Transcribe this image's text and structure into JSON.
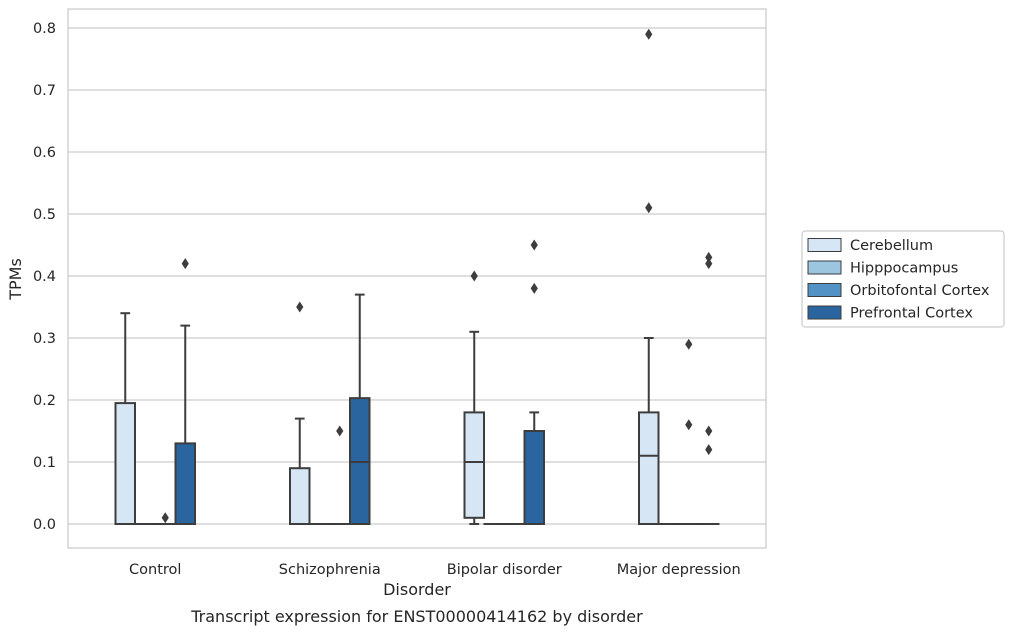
{
  "chart_data": {
    "type": "boxplot",
    "xlabel": "Disorder",
    "ylabel": "TPMs",
    "caption": "Transcript expression for ENST00000414162 by disorder",
    "ylim": [
      -0.04,
      0.83
    ],
    "yticks": [
      "0.0",
      "0.1",
      "0.2",
      "0.3",
      "0.4",
      "0.5",
      "0.6",
      "0.7",
      "0.8"
    ],
    "grid": "horizontal",
    "legend_position": "outside-right",
    "categories": [
      "Control",
      "Schizophrenia",
      "Bipolar disorder",
      "Major depression"
    ],
    "series": [
      {
        "name": "Cerebellum",
        "color": "#d6e6f4",
        "boxes": [
          {
            "min": 0,
            "q1": 0,
            "median": 0,
            "q3": 0.195,
            "max": 0.34,
            "outliers": []
          },
          {
            "min": 0,
            "q1": 0,
            "median": 0,
            "q3": 0.09,
            "max": 0.17,
            "outliers": [
              0.35
            ]
          },
          {
            "min": 0,
            "q1": 0.01,
            "median": 0.1,
            "q3": 0.18,
            "max": 0.31,
            "outliers": [
              0.4
            ]
          },
          {
            "min": 0,
            "q1": 0,
            "median": 0.11,
            "q3": 0.18,
            "max": 0.3,
            "outliers": [
              0.79,
              0.51
            ]
          }
        ]
      },
      {
        "name": "Hipppocampus",
        "color": "#9cc5e0",
        "boxes": [
          {
            "min": 0,
            "q1": 0,
            "median": 0,
            "q3": 0,
            "max": 0,
            "outliers": []
          },
          {
            "min": 0,
            "q1": 0,
            "median": 0,
            "q3": 0,
            "max": 0,
            "outliers": []
          },
          {
            "min": 0,
            "q1": 0,
            "median": 0,
            "q3": 0,
            "max": 0,
            "outliers": []
          },
          {
            "min": 0,
            "q1": 0,
            "median": 0,
            "q3": 0,
            "max": 0,
            "outliers": []
          }
        ]
      },
      {
        "name": "Orbitofontal Cortex",
        "color": "#5292c4",
        "boxes": [
          {
            "min": 0,
            "q1": 0,
            "median": 0,
            "q3": 0,
            "max": 0,
            "outliers": [
              0.01
            ]
          },
          {
            "min": 0,
            "q1": 0,
            "median": 0,
            "q3": 0,
            "max": 0,
            "outliers": [
              0.15
            ]
          },
          {
            "min": 0,
            "q1": 0,
            "median": 0,
            "q3": 0,
            "max": 0,
            "outliers": []
          },
          {
            "min": 0,
            "q1": 0,
            "median": 0,
            "q3": 0,
            "max": 0,
            "outliers": [
              0.29,
              0.16
            ]
          }
        ]
      },
      {
        "name": "Prefrontal Cortex",
        "color": "#2a65a0",
        "boxes": [
          {
            "min": 0,
            "q1": 0,
            "median": 0,
            "q3": 0.13,
            "max": 0.32,
            "outliers": [
              0.42
            ]
          },
          {
            "min": 0,
            "q1": 0,
            "median": 0.1,
            "q3": 0.203,
            "max": 0.37,
            "outliers": []
          },
          {
            "min": 0,
            "q1": 0,
            "median": 0,
            "q3": 0.15,
            "max": 0.18,
            "outliers": [
              0.45,
              0.38
            ]
          },
          {
            "min": 0,
            "q1": 0,
            "median": 0,
            "q3": 0,
            "max": 0,
            "outliers": [
              0.43,
              0.42,
              0.15,
              0.12
            ]
          }
        ]
      }
    ]
  }
}
